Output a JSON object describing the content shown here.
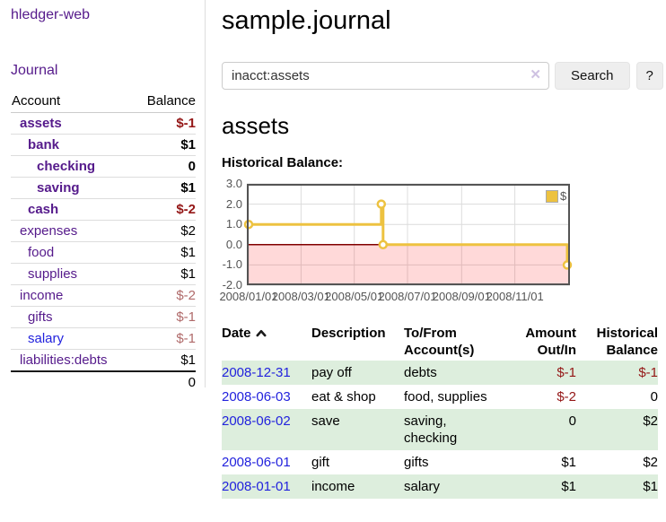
{
  "app": {
    "brand": "hledger-web",
    "nav_journal": "Journal"
  },
  "sidebar": {
    "headers": {
      "account": "Account",
      "balance": "Balance"
    },
    "rows": [
      {
        "name": "assets",
        "balance": "$-1",
        "indent": 0,
        "bold": true,
        "visited": true,
        "balance_style": "strong-neg"
      },
      {
        "name": "bank",
        "balance": "$1",
        "indent": 1,
        "bold": true,
        "visited": true,
        "balance_style": "normal"
      },
      {
        "name": "checking",
        "balance": "0",
        "indent": 2,
        "bold": true,
        "visited": true,
        "balance_style": "normal"
      },
      {
        "name": "saving",
        "balance": "$1",
        "indent": 2,
        "bold": true,
        "visited": true,
        "balance_style": "normal"
      },
      {
        "name": "cash",
        "balance": "$-2",
        "indent": 1,
        "bold": true,
        "visited": true,
        "balance_style": "strong-neg"
      },
      {
        "name": "expenses",
        "balance": "$2",
        "indent": 0,
        "bold": false,
        "visited": true,
        "balance_style": "normal"
      },
      {
        "name": "food",
        "balance": "$1",
        "indent": 1,
        "bold": false,
        "visited": true,
        "balance_style": "normal"
      },
      {
        "name": "supplies",
        "balance": "$1",
        "indent": 1,
        "bold": false,
        "visited": true,
        "balance_style": "normal"
      },
      {
        "name": "income",
        "balance": "$-2",
        "indent": 0,
        "bold": false,
        "visited": true,
        "balance_style": "muted-neg"
      },
      {
        "name": "gifts",
        "balance": "$-1",
        "indent": 1,
        "bold": false,
        "visited": true,
        "balance_style": "muted-neg"
      },
      {
        "name": "salary",
        "balance": "$-1",
        "indent": 1,
        "bold": false,
        "visited": false,
        "balance_style": "muted-neg"
      },
      {
        "name": "liabilities:debts",
        "balance": "$1",
        "indent": 0,
        "bold": false,
        "visited": true,
        "balance_style": "normal"
      }
    ],
    "total": "0"
  },
  "header": {
    "title": "sample.journal"
  },
  "search": {
    "value": "inacct:assets",
    "clear_icon": "✕",
    "button": "Search",
    "help_button": "?"
  },
  "account_page": {
    "title": "assets",
    "chart_label": "Historical Balance:"
  },
  "chart_data": {
    "type": "line",
    "step": true,
    "title": "Historical Balance",
    "series": [
      {
        "name": "$",
        "color": "#edc240",
        "points": [
          [
            "2008-01-01",
            1.0
          ],
          [
            "2008-06-01",
            2.0
          ],
          [
            "2008-06-03",
            0.0
          ],
          [
            "2008-12-31",
            -1.0
          ]
        ]
      }
    ],
    "xlim": [
      "2008-01-01",
      "2008-12-31"
    ],
    "ylim": [
      -2.0,
      3.0
    ],
    "x_ticks": [
      {
        "date": "2008-01-01",
        "label": "2008/01/01"
      },
      {
        "date": "2008-03-01",
        "label": "2008/03/01"
      },
      {
        "date": "2008-05-01",
        "label": "2008/05/01"
      },
      {
        "date": "2008-07-01",
        "label": "2008/07/01"
      },
      {
        "date": "2008-09-01",
        "label": "2008/09/01"
      },
      {
        "date": "2008-11-01",
        "label": "2008/11/01"
      }
    ],
    "y_ticks": [
      {
        "value": 3.0,
        "label": "3.0"
      },
      {
        "value": 2.0,
        "label": "2.0"
      },
      {
        "value": 1.0,
        "label": "1.0"
      },
      {
        "value": 0.0,
        "label": "0.0"
      },
      {
        "value": -1.0,
        "label": "-1.0"
      },
      {
        "value": -2.0,
        "label": "-2.0"
      }
    ],
    "legend": {
      "label": "$",
      "position": "top-right"
    },
    "grid": true,
    "negative_region_fill": "rgba(255,0,0,0.15)",
    "zero_line_color": "#800000",
    "border_color": "#545454",
    "grid_color": "#dcdcdc"
  },
  "register": {
    "headers": [
      "Date",
      "Description",
      "To/From Account(s)",
      "Amount Out/In",
      "Historical Balance"
    ],
    "rows": [
      {
        "date": "2008-12-31",
        "description": "pay off",
        "accounts": "debts",
        "amount": "$-1",
        "balance": "$-1",
        "amount_neg": true,
        "balance_neg": true,
        "green": true
      },
      {
        "date": "2008-06-03",
        "description": "eat & shop",
        "accounts": "food, supplies",
        "amount": "$-2",
        "balance": "0",
        "amount_neg": true,
        "balance_neg": false,
        "green": false
      },
      {
        "date": "2008-06-02",
        "description": "save",
        "accounts": "saving, checking",
        "amount": "0",
        "balance": "$2",
        "amount_neg": false,
        "balance_neg": false,
        "green": true
      },
      {
        "date": "2008-06-01",
        "description": "gift",
        "accounts": "gifts",
        "amount": "$1",
        "balance": "$2",
        "amount_neg": false,
        "balance_neg": false,
        "green": false
      },
      {
        "date": "2008-01-01",
        "description": "income",
        "accounts": "salary",
        "amount": "$1",
        "balance": "$1",
        "amount_neg": false,
        "balance_neg": false,
        "green": true
      }
    ]
  },
  "colors": {
    "link_visited": "#551a8b",
    "link_unvisited": "#2222dd",
    "negative_strong": "#941616",
    "negative_muted": "#b06a6a",
    "row_green": "#ddeedd",
    "series_gold": "#edc240"
  }
}
